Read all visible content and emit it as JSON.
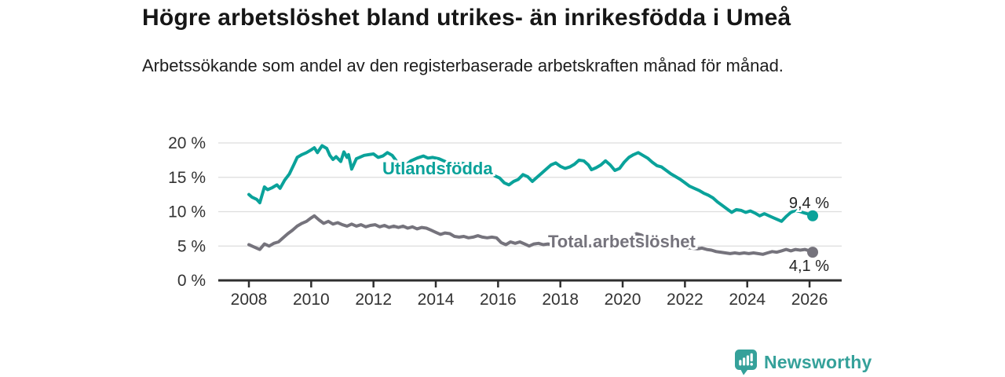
{
  "header": {
    "title": "Högre arbetslöshet bland utrikes- än inrikesfödda i Umeå",
    "subtitle": "Arbetssökande som andel av den registerbaserade arbetskraften månad för månad."
  },
  "footer": {
    "brand": "Newsworthy",
    "logo_icon": "bar-chart-speech-bubble-icon",
    "brand_color": "#35a19a"
  },
  "colors": {
    "accent_teal": "#0aa29a",
    "neutral_gray": "#75737c",
    "axis": "#2f2f2f",
    "gridline": "#dddddd",
    "tick_text": "#333333",
    "annotation_text": "#222222"
  },
  "chart_data": {
    "type": "line",
    "grid": "horizontal",
    "legend": "inline-labels",
    "x_axis": {
      "tick_values": [
        2008,
        2010,
        2012,
        2014,
        2016,
        2018,
        2020,
        2022,
        2024,
        2026
      ],
      "tick_labels": [
        "2008",
        "2010",
        "2012",
        "2014",
        "2016",
        "2018",
        "2020",
        "2022",
        "2024",
        "2026"
      ],
      "range": [
        2008,
        2026.2
      ]
    },
    "y_axis": {
      "tick_values": [
        0,
        5,
        10,
        15,
        20
      ],
      "tick_labels": [
        "0 %",
        "5 %",
        "10 %",
        "15 %",
        "20 %"
      ],
      "range": [
        0,
        21.5
      ],
      "unit": "%"
    },
    "series": [
      {
        "name": "Utlandsfödda",
        "color": "#0aa29a",
        "end_label": "9,4 %",
        "end_label_position": "above",
        "points": [
          [
            2008.0,
            12.5
          ],
          [
            2008.1,
            12.1
          ],
          [
            2008.25,
            11.8
          ],
          [
            2008.35,
            11.3
          ],
          [
            2008.5,
            13.6
          ],
          [
            2008.6,
            13.2
          ],
          [
            2008.75,
            13.5
          ],
          [
            2008.9,
            13.9
          ],
          [
            2009.0,
            13.4
          ],
          [
            2009.15,
            14.6
          ],
          [
            2009.3,
            15.5
          ],
          [
            2009.45,
            16.9
          ],
          [
            2009.55,
            17.9
          ],
          [
            2009.7,
            18.3
          ],
          [
            2009.85,
            18.6
          ],
          [
            2010.0,
            19.0
          ],
          [
            2010.1,
            19.3
          ],
          [
            2010.2,
            18.6
          ],
          [
            2010.35,
            19.6
          ],
          [
            2010.5,
            19.2
          ],
          [
            2010.6,
            18.2
          ],
          [
            2010.7,
            17.6
          ],
          [
            2010.8,
            18.0
          ],
          [
            2010.95,
            17.3
          ],
          [
            2011.05,
            18.7
          ],
          [
            2011.15,
            17.9
          ],
          [
            2011.2,
            18.3
          ],
          [
            2011.3,
            16.2
          ],
          [
            2011.45,
            17.7
          ],
          [
            2011.55,
            17.9
          ],
          [
            2011.7,
            18.2
          ],
          [
            2011.85,
            18.3
          ],
          [
            2012.0,
            18.4
          ],
          [
            2012.15,
            17.9
          ],
          [
            2012.3,
            18.1
          ],
          [
            2012.45,
            18.6
          ],
          [
            2012.6,
            18.2
          ],
          [
            2012.7,
            17.6
          ],
          [
            2012.8,
            16.9
          ],
          [
            2012.9,
            16.2
          ],
          [
            2013.0,
            16.6
          ],
          [
            2013.2,
            17.4
          ],
          [
            2013.4,
            17.8
          ],
          [
            2013.6,
            18.1
          ],
          [
            2013.75,
            17.8
          ],
          [
            2013.9,
            17.9
          ],
          [
            2014.1,
            17.7
          ],
          [
            2014.3,
            17.3
          ],
          [
            2014.5,
            16.9
          ],
          [
            2014.7,
            17.2
          ],
          [
            2014.9,
            17.0
          ],
          [
            2015.1,
            16.6
          ],
          [
            2015.3,
            16.2
          ],
          [
            2015.5,
            16.4
          ],
          [
            2015.7,
            15.8
          ],
          [
            2015.9,
            15.2
          ],
          [
            2016.05,
            14.9
          ],
          [
            2016.2,
            14.2
          ],
          [
            2016.35,
            13.9
          ],
          [
            2016.5,
            14.4
          ],
          [
            2016.65,
            14.7
          ],
          [
            2016.8,
            15.4
          ],
          [
            2016.95,
            15.1
          ],
          [
            2017.1,
            14.4
          ],
          [
            2017.25,
            15.0
          ],
          [
            2017.4,
            15.6
          ],
          [
            2017.55,
            16.2
          ],
          [
            2017.7,
            16.8
          ],
          [
            2017.85,
            17.1
          ],
          [
            2018.0,
            16.6
          ],
          [
            2018.15,
            16.3
          ],
          [
            2018.3,
            16.5
          ],
          [
            2018.45,
            16.9
          ],
          [
            2018.6,
            17.5
          ],
          [
            2018.75,
            17.4
          ],
          [
            2018.9,
            16.8
          ],
          [
            2019.0,
            16.1
          ],
          [
            2019.15,
            16.4
          ],
          [
            2019.3,
            16.8
          ],
          [
            2019.45,
            17.4
          ],
          [
            2019.6,
            16.8
          ],
          [
            2019.75,
            16.0
          ],
          [
            2019.9,
            16.3
          ],
          [
            2020.05,
            17.2
          ],
          [
            2020.2,
            17.9
          ],
          [
            2020.35,
            18.3
          ],
          [
            2020.5,
            18.6
          ],
          [
            2020.65,
            18.2
          ],
          [
            2020.8,
            17.8
          ],
          [
            2020.95,
            17.2
          ],
          [
            2021.1,
            16.7
          ],
          [
            2021.25,
            16.5
          ],
          [
            2021.4,
            16.0
          ],
          [
            2021.55,
            15.5
          ],
          [
            2021.7,
            15.1
          ],
          [
            2021.85,
            14.7
          ],
          [
            2022.0,
            14.2
          ],
          [
            2022.15,
            13.7
          ],
          [
            2022.3,
            13.4
          ],
          [
            2022.45,
            13.1
          ],
          [
            2022.6,
            12.7
          ],
          [
            2022.75,
            12.4
          ],
          [
            2022.9,
            12.0
          ],
          [
            2023.05,
            11.4
          ],
          [
            2023.2,
            10.9
          ],
          [
            2023.35,
            10.4
          ],
          [
            2023.5,
            9.9
          ],
          [
            2023.65,
            10.3
          ],
          [
            2023.8,
            10.2
          ],
          [
            2023.95,
            9.9
          ],
          [
            2024.1,
            10.1
          ],
          [
            2024.25,
            9.8
          ],
          [
            2024.4,
            9.4
          ],
          [
            2024.55,
            9.7
          ],
          [
            2024.7,
            9.4
          ],
          [
            2024.85,
            9.1
          ],
          [
            2025.0,
            8.8
          ],
          [
            2025.1,
            8.6
          ],
          [
            2025.25,
            9.3
          ],
          [
            2025.4,
            9.9
          ],
          [
            2025.55,
            10.2
          ],
          [
            2025.7,
            10.0
          ],
          [
            2025.85,
            9.8
          ],
          [
            2026.0,
            9.6
          ],
          [
            2026.1,
            9.4
          ]
        ]
      },
      {
        "name": "Total arbetslöshet",
        "color": "#75737c",
        "end_label": "4,1 %",
        "end_label_position": "below",
        "points": [
          [
            2008.0,
            5.2
          ],
          [
            2008.1,
            5.0
          ],
          [
            2008.25,
            4.7
          ],
          [
            2008.35,
            4.5
          ],
          [
            2008.5,
            5.3
          ],
          [
            2008.65,
            5.0
          ],
          [
            2008.8,
            5.4
          ],
          [
            2008.95,
            5.6
          ],
          [
            2009.1,
            6.2
          ],
          [
            2009.25,
            6.8
          ],
          [
            2009.4,
            7.3
          ],
          [
            2009.55,
            7.9
          ],
          [
            2009.7,
            8.3
          ],
          [
            2009.85,
            8.6
          ],
          [
            2010.0,
            9.1
          ],
          [
            2010.1,
            9.4
          ],
          [
            2010.25,
            8.8
          ],
          [
            2010.4,
            8.3
          ],
          [
            2010.55,
            8.6
          ],
          [
            2010.7,
            8.2
          ],
          [
            2010.85,
            8.4
          ],
          [
            2011.0,
            8.1
          ],
          [
            2011.15,
            7.9
          ],
          [
            2011.3,
            8.2
          ],
          [
            2011.45,
            7.9
          ],
          [
            2011.6,
            8.1
          ],
          [
            2011.75,
            7.8
          ],
          [
            2011.9,
            8.0
          ],
          [
            2012.05,
            8.1
          ],
          [
            2012.2,
            7.8
          ],
          [
            2012.35,
            8.0
          ],
          [
            2012.5,
            7.7
          ],
          [
            2012.65,
            7.9
          ],
          [
            2012.8,
            7.7
          ],
          [
            2012.95,
            7.9
          ],
          [
            2013.1,
            7.6
          ],
          [
            2013.25,
            7.8
          ],
          [
            2013.4,
            7.5
          ],
          [
            2013.55,
            7.7
          ],
          [
            2013.7,
            7.6
          ],
          [
            2013.85,
            7.3
          ],
          [
            2014.0,
            7.0
          ],
          [
            2014.15,
            6.7
          ],
          [
            2014.3,
            6.9
          ],
          [
            2014.45,
            6.8
          ],
          [
            2014.6,
            6.4
          ],
          [
            2014.75,
            6.3
          ],
          [
            2014.9,
            6.4
          ],
          [
            2015.05,
            6.2
          ],
          [
            2015.2,
            6.3
          ],
          [
            2015.35,
            6.5
          ],
          [
            2015.5,
            6.3
          ],
          [
            2015.65,
            6.2
          ],
          [
            2015.8,
            6.3
          ],
          [
            2015.95,
            6.2
          ],
          [
            2016.1,
            5.5
          ],
          [
            2016.25,
            5.2
          ],
          [
            2016.4,
            5.6
          ],
          [
            2016.55,
            5.4
          ],
          [
            2016.7,
            5.6
          ],
          [
            2016.85,
            5.3
          ],
          [
            2017.0,
            5.0
          ],
          [
            2017.15,
            5.3
          ],
          [
            2017.3,
            5.4
          ],
          [
            2017.45,
            5.2
          ],
          [
            2017.6,
            5.3
          ],
          [
            2017.75,
            5.2
          ],
          [
            2017.9,
            5.1
          ],
          [
            2018.1,
            5.3
          ],
          [
            2018.3,
            5.1
          ],
          [
            2018.5,
            5.0
          ],
          [
            2018.7,
            5.2
          ],
          [
            2018.9,
            5.0
          ],
          [
            2019.1,
            5.1
          ],
          [
            2019.3,
            4.9
          ],
          [
            2019.5,
            5.0
          ],
          [
            2019.7,
            4.9
          ],
          [
            2019.9,
            5.1
          ],
          [
            2020.1,
            5.8
          ],
          [
            2020.3,
            6.4
          ],
          [
            2020.45,
            6.8
          ],
          [
            2020.6,
            6.6
          ],
          [
            2020.8,
            6.2
          ],
          [
            2021.0,
            5.9
          ],
          [
            2021.2,
            5.6
          ],
          [
            2021.4,
            5.3
          ],
          [
            2021.6,
            5.1
          ],
          [
            2021.8,
            4.9
          ],
          [
            2022.0,
            4.8
          ],
          [
            2022.2,
            4.7
          ],
          [
            2022.4,
            4.6
          ],
          [
            2022.55,
            4.7
          ],
          [
            2022.7,
            4.5
          ],
          [
            2022.85,
            4.4
          ],
          [
            2023.0,
            4.2
          ],
          [
            2023.15,
            4.1
          ],
          [
            2023.3,
            4.0
          ],
          [
            2023.45,
            3.9
          ],
          [
            2023.6,
            4.0
          ],
          [
            2023.75,
            3.9
          ],
          [
            2023.9,
            4.0
          ],
          [
            2024.05,
            3.9
          ],
          [
            2024.2,
            4.0
          ],
          [
            2024.35,
            3.9
          ],
          [
            2024.5,
            3.8
          ],
          [
            2024.65,
            4.0
          ],
          [
            2024.8,
            4.2
          ],
          [
            2024.95,
            4.1
          ],
          [
            2025.1,
            4.3
          ],
          [
            2025.25,
            4.5
          ],
          [
            2025.4,
            4.3
          ],
          [
            2025.55,
            4.5
          ],
          [
            2025.7,
            4.4
          ],
          [
            2025.85,
            4.5
          ],
          [
            2026.0,
            4.3
          ],
          [
            2026.1,
            4.1
          ]
        ]
      }
    ]
  }
}
